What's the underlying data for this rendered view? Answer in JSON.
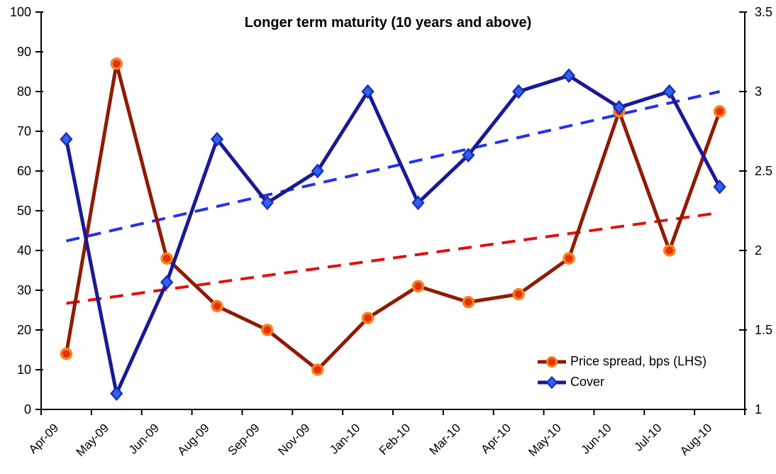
{
  "chart_data": {
    "type": "line",
    "title": "Longer term maturity (10 years and above)",
    "categories": [
      "Apr-09",
      "May-09",
      "Jun-09",
      "Aug-09",
      "Sep-09",
      "Nov-09",
      "Jan-10",
      "Feb-10",
      "Mar-10",
      "Apr-10",
      "May-10",
      "Jun-10",
      "Jul-10",
      "Aug-10"
    ],
    "series": [
      {
        "name": "Price spread, bps (LHS)",
        "axis": "left",
        "values": [
          14,
          87,
          38,
          26,
          20,
          10,
          23,
          31,
          27,
          29,
          38,
          75,
          40,
          75
        ],
        "color": "#8e1b04",
        "marker": "circle",
        "marker_fill": "#e72f04",
        "marker_edge": "#f58220",
        "trend": {
          "start": 26.7,
          "end": 49.5,
          "color": "#de1110"
        }
      },
      {
        "name": "Cover",
        "axis": "right",
        "values": [
          2.7,
          1.1,
          1.8,
          2.7,
          2.3,
          2.5,
          3.0,
          2.3,
          2.6,
          3.0,
          3.1,
          2.9,
          3.0,
          2.4
        ],
        "color": "#191996",
        "marker": "diamond",
        "marker_fill": "#2b63f5",
        "marker_edge": "#1d2fb0",
        "trend": {
          "start": 2.06,
          "end": 3.0,
          "color": "#2431ed"
        }
      }
    ],
    "left_axis": {
      "min": 0,
      "max": 100,
      "ticks": [
        0,
        10,
        20,
        30,
        40,
        50,
        60,
        70,
        80,
        90,
        100
      ],
      "tick_labels": [
        "0",
        "10",
        "20",
        "30",
        "40",
        "50",
        "60",
        "70",
        "80",
        "90",
        "100"
      ]
    },
    "right_axis": {
      "min": 1,
      "max": 3.5,
      "ticks": [
        1,
        1.5,
        2,
        2.5,
        3,
        3.5
      ],
      "tick_labels": [
        "1",
        "1.5",
        "2",
        "2.5",
        "3",
        "3.5"
      ]
    },
    "grid": false,
    "legend_position": "inside-bottom-right",
    "axis_color": "#000000"
  }
}
